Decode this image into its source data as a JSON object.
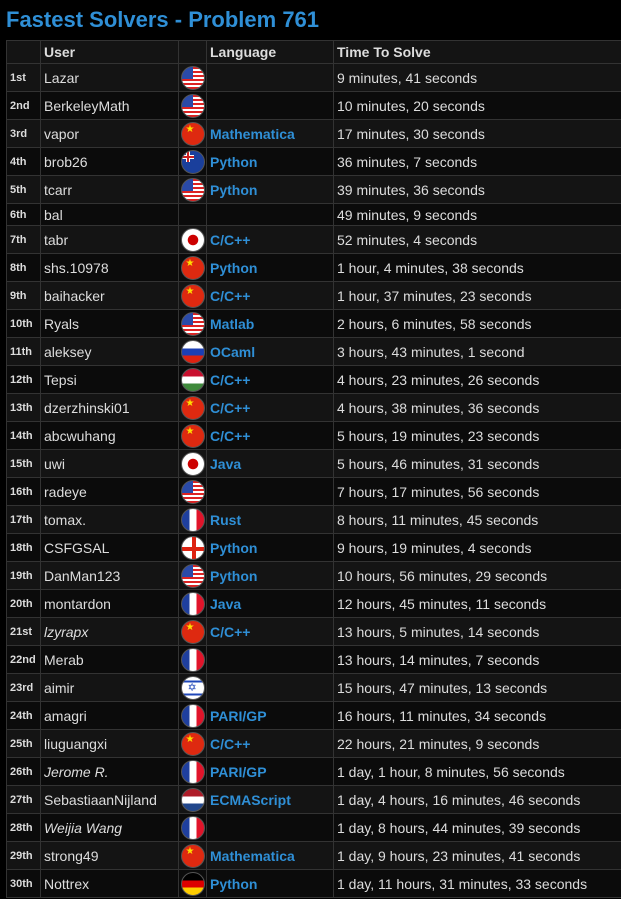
{
  "title": "Fastest Solvers - Problem 761",
  "columns": {
    "rank": "",
    "user": "User",
    "flag": "",
    "language": "Language",
    "time": "Time To Solve"
  },
  "rows": [
    {
      "rank": "1st",
      "user": "Lazar",
      "flag": "us-flag",
      "language": "",
      "time": "9 minutes, 41 seconds"
    },
    {
      "rank": "2nd",
      "user": "BerkeleyMath",
      "flag": "us-flag",
      "language": "",
      "time": "10 minutes, 20 seconds"
    },
    {
      "rank": "3rd",
      "user": "vapor",
      "flag": "cn-flag",
      "language": "Mathematica",
      "time": "17 minutes, 30 seconds"
    },
    {
      "rank": "4th",
      "user": "brob26",
      "flag": "au-flag",
      "language": "Python",
      "time": "36 minutes, 7 seconds"
    },
    {
      "rank": "5th",
      "user": "tcarr",
      "flag": "us-flag",
      "language": "Python",
      "time": "39 minutes, 36 seconds"
    },
    {
      "rank": "6th",
      "user": "bal",
      "flag": "",
      "language": "",
      "time": "49 minutes, 9 seconds"
    },
    {
      "rank": "7th",
      "user": "tabr",
      "flag": "jp-flag",
      "language": "C/C++",
      "time": "52 minutes, 4 seconds"
    },
    {
      "rank": "8th",
      "user": "shs.10978",
      "flag": "cn-flag",
      "language": "Python",
      "time": "1 hour, 4 minutes, 38 seconds"
    },
    {
      "rank": "9th",
      "user": "baihacker",
      "flag": "cn-flag",
      "language": "C/C++",
      "time": "1 hour, 37 minutes, 23 seconds"
    },
    {
      "rank": "10th",
      "user": "Ryals",
      "flag": "us-flag",
      "language": "Matlab",
      "time": "2 hours, 6 minutes, 58 seconds"
    },
    {
      "rank": "11th",
      "user": "aleksey",
      "flag": "ru-flag",
      "language": "OCaml",
      "time": "3 hours, 43 minutes, 1 second"
    },
    {
      "rank": "12th",
      "user": "Tepsi",
      "flag": "hu-flag",
      "language": "C/C++",
      "time": "4 hours, 23 minutes, 26 seconds"
    },
    {
      "rank": "13th",
      "user": "dzerzhinski01",
      "flag": "cn-flag",
      "language": "C/C++",
      "time": "4 hours, 38 minutes, 36 seconds"
    },
    {
      "rank": "14th",
      "user": "abcwuhang",
      "flag": "cn-flag",
      "language": "C/C++",
      "time": "5 hours, 19 minutes, 23 seconds"
    },
    {
      "rank": "15th",
      "user": "uwi",
      "flag": "jp-flag",
      "language": "Java",
      "time": "5 hours, 46 minutes, 31 seconds"
    },
    {
      "rank": "16th",
      "user": "radeye",
      "flag": "us-flag",
      "language": "",
      "time": "7 hours, 17 minutes, 56 seconds"
    },
    {
      "rank": "17th",
      "user": "tomax.",
      "flag": "fr-flag",
      "language": "Rust",
      "time": "8 hours, 11 minutes, 45 seconds"
    },
    {
      "rank": "18th",
      "user": "CSFGSAL",
      "flag": "gb-eng-flag",
      "language": "Python",
      "time": "9 hours, 19 minutes, 4 seconds"
    },
    {
      "rank": "19th",
      "user": "DanMan123",
      "flag": "us-flag",
      "language": "Python",
      "time": "10 hours, 56 minutes, 29 seconds"
    },
    {
      "rank": "20th",
      "user": "montardon",
      "flag": "fr-flag",
      "language": "Java",
      "time": "12 hours, 45 minutes, 11 seconds"
    },
    {
      "rank": "21st",
      "user": "lzyrapx",
      "flag": "cn-flag",
      "language": "C/C++",
      "time": "13 hours, 5 minutes, 14 seconds",
      "italic": true
    },
    {
      "rank": "22nd",
      "user": "Merab",
      "flag": "fr-flag",
      "language": "",
      "time": "13 hours, 14 minutes, 7 seconds"
    },
    {
      "rank": "23rd",
      "user": "aimir",
      "flag": "il-flag",
      "language": "",
      "time": "15 hours, 47 minutes, 13 seconds"
    },
    {
      "rank": "24th",
      "user": "amagri",
      "flag": "fr-flag",
      "language": "PARI/GP",
      "time": "16 hours, 11 minutes, 34 seconds"
    },
    {
      "rank": "25th",
      "user": "liuguangxi",
      "flag": "cn-flag",
      "language": "C/C++",
      "time": "22 hours, 21 minutes, 9 seconds"
    },
    {
      "rank": "26th",
      "user": "Jerome R.",
      "flag": "fr-flag",
      "language": "PARI/GP",
      "time": "1 day, 1 hour, 8 minutes, 56 seconds",
      "italic": true
    },
    {
      "rank": "27th",
      "user": "SebastiaanNijland",
      "flag": "nl-flag",
      "language": "ECMAScript",
      "time": "1 day, 4 hours, 16 minutes, 46 seconds"
    },
    {
      "rank": "28th",
      "user": "Weijia Wang",
      "flag": "fr-flag",
      "language": "",
      "time": "1 day, 8 hours, 44 minutes, 39 seconds",
      "italic": true
    },
    {
      "rank": "29th",
      "user": "strong49",
      "flag": "cn-flag",
      "language": "Mathematica",
      "time": "1 day, 9 hours, 23 minutes, 41 seconds"
    },
    {
      "rank": "30th",
      "user": "Nottrex",
      "flag": "de-flag",
      "language": "Python",
      "time": "1 day, 11 hours, 31 minutes, 33 seconds"
    }
  ]
}
